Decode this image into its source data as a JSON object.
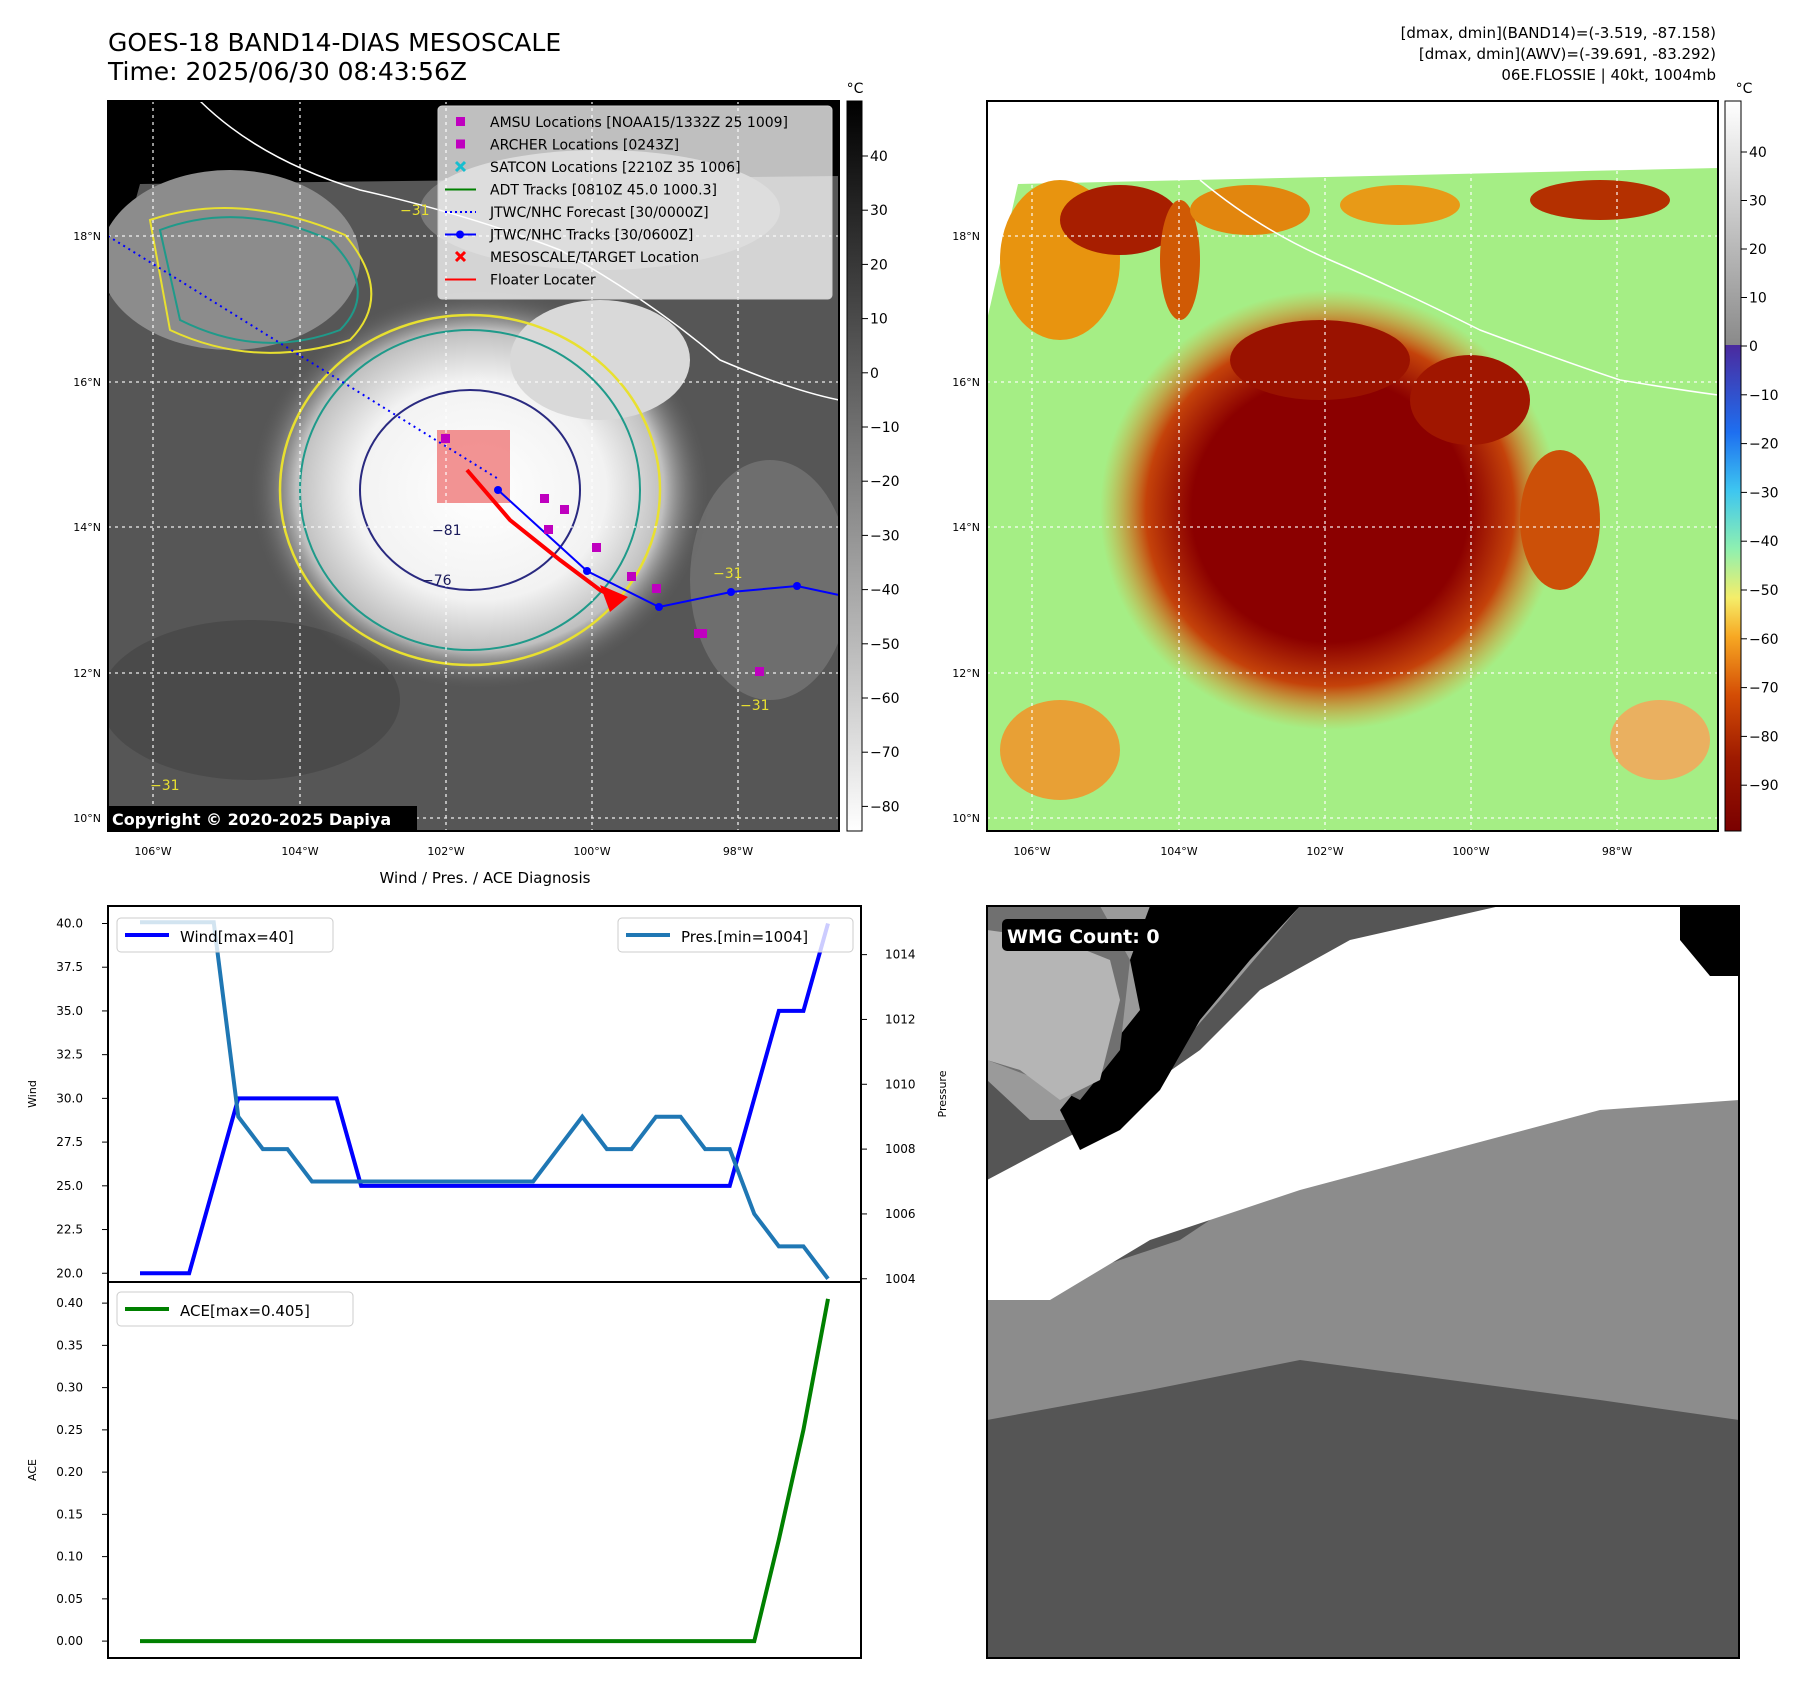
{
  "header": {
    "title_line1": "GOES-18 BAND14-DIAS MESOSCALE",
    "title_line2": "Time: 2025/06/30 08:43:56Z",
    "info_line1": "[dmax, dmin](BAND14)=(-3.519, -87.158)",
    "info_line2": "[dmax, dmin](AWV)=(-39.691, -83.292)",
    "info_line3": "06E.FLOSSIE | 40kt, 1004mb"
  },
  "map_axes": {
    "lat_labels": [
      "18°N",
      "16°N",
      "14°N",
      "12°N",
      "10°N"
    ],
    "lon_labels": [
      "106°W",
      "104°W",
      "102°W",
      "100°W",
      "98°W"
    ]
  },
  "ir_panel": {
    "colorbar_unit": "°C",
    "colorbar_ticks": [
      "40",
      "30",
      "20",
      "10",
      "0",
      "−10",
      "−20",
      "−30",
      "−40",
      "−50",
      "−60",
      "−70",
      "−80"
    ],
    "contour_labels": [
      "−81",
      "−76",
      "−31",
      "−31",
      "−31",
      "−31"
    ],
    "copyright": "Copyright © 2020-2025 Dapiya",
    "legend": [
      {
        "label": "AMSU Locations [NOAA15/1332Z 25 1009]",
        "color": "#bf00bf",
        "marker": "square"
      },
      {
        "label": "ARCHER Locations [0243Z]",
        "color": "#bf00bf",
        "marker": "square"
      },
      {
        "label": "SATCON Locations [2210Z 35 1006]",
        "color": "#17becf",
        "marker": "x"
      },
      {
        "label": "ADT Tracks [0810Z 45.0 1000.3]",
        "color": "#008000",
        "marker": "line"
      },
      {
        "label": "JTWC/NHC Forecast [30/0000Z]",
        "color": "#0000ff",
        "marker": "dotted"
      },
      {
        "label": "JTWC/NHC Tracks [30/0600Z]",
        "color": "#0000ff",
        "marker": "line-dot"
      },
      {
        "label": "MESOSCALE/TARGET Location",
        "color": "#ff0000",
        "marker": "x"
      },
      {
        "label": "Floater Locater",
        "color": "#ff0000",
        "marker": "line"
      }
    ]
  },
  "wv_panel": {
    "colorbar_unit": "°C",
    "colorbar_ticks": [
      "40",
      "30",
      "20",
      "10",
      "0",
      "−10",
      "−20",
      "−30",
      "−40",
      "−50",
      "−60",
      "−70",
      "−80",
      "−90"
    ]
  },
  "wmg_panel": {
    "label": "WMG Count: 0"
  },
  "colors": {
    "wind": "#0000ff",
    "pressure": "#1f77b4",
    "ace": "#008000",
    "floater": "#ff0000",
    "amsu": "#bf00bf"
  },
  "chart_data": [
    {
      "type": "line",
      "title": "Wind / Pres. / ACE Diagnosis",
      "ylabel": "Wind",
      "ylabel_right": "Pressure",
      "ylim": [
        19.5,
        41
      ],
      "ylim_right": [
        1003.9,
        1015.5
      ],
      "yticks": [
        "40.0",
        "37.5",
        "35.0",
        "32.5",
        "30.0",
        "27.5",
        "25.0",
        "22.5",
        "20.0"
      ],
      "yticks_right": [
        "1014",
        "1012",
        "1010",
        "1008",
        "1006",
        "1004"
      ],
      "series": [
        {
          "name": "Wind[max=40]",
          "axis": "left",
          "values": [
            20,
            20,
            20,
            25,
            30,
            30,
            30,
            30,
            30,
            25,
            25,
            25,
            25,
            25,
            25,
            25,
            25,
            25,
            25,
            25,
            25,
            25,
            25,
            25,
            25,
            30,
            35,
            35,
            40
          ]
        },
        {
          "name": "Pres.[min=1004]",
          "axis": "right",
          "values": [
            1015,
            1015,
            1015,
            1015,
            1009,
            1008,
            1008,
            1007,
            1007,
            1007,
            1007,
            1007,
            1007,
            1007,
            1007,
            1007,
            1007,
            1008,
            1009,
            1008,
            1008,
            1009,
            1009,
            1008,
            1008,
            1006,
            1005,
            1005,
            1004
          ]
        }
      ]
    },
    {
      "type": "line",
      "ylabel": "ACE",
      "ylim": [
        -0.02,
        0.425
      ],
      "yticks": [
        "0.40",
        "0.35",
        "0.30",
        "0.25",
        "0.20",
        "0.15",
        "0.10",
        "0.05",
        "0.00"
      ],
      "series": [
        {
          "name": "ACE[max=0.405]",
          "values": [
            0,
            0,
            0,
            0,
            0,
            0,
            0,
            0,
            0,
            0,
            0,
            0,
            0,
            0,
            0,
            0,
            0,
            0,
            0,
            0,
            0,
            0,
            0,
            0,
            0,
            0,
            0.12,
            0.25,
            0.405
          ]
        }
      ]
    }
  ]
}
